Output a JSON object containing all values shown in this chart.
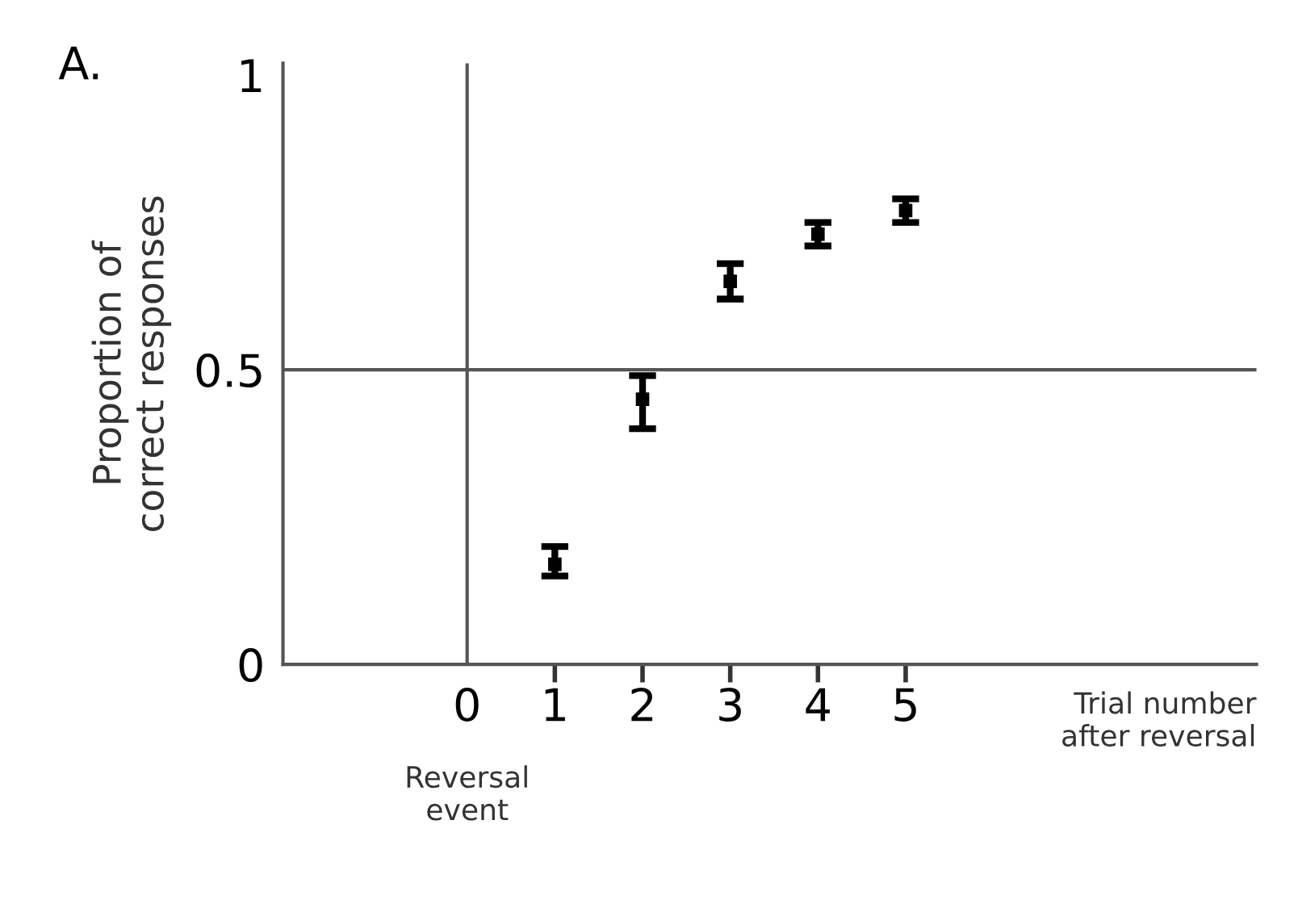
{
  "chart_data": {
    "type": "scatter",
    "ylabel": "Proportion of\ncorrect responses",
    "xlabel": "Trial number\nafter reversal",
    "annotations": [
      "A."
    ],
    "x": [
      1,
      2,
      3,
      4,
      5
    ],
    "series": [
      {
        "color": "#000000",
        "values": [
          0.17,
          0.45,
          0.65,
          0.73,
          0.77
        ],
        "errors": [
          [
            0.15,
            0.2
          ],
          [
            0.4,
            0.49
          ],
          [
            0.62,
            0.68
          ],
          [
            0.71,
            0.75
          ],
          [
            0.75,
            0.79
          ]
        ]
      }
    ],
    "marker": "square",
    "xlim": [
      -2.1,
      9
    ],
    "ylim": [
      0,
      1.02
    ],
    "xticks": [
      0,
      1,
      2,
      3,
      4,
      5
    ],
    "yticks": [
      0,
      0.5,
      1
    ],
    "ref_lines": [
      {
        "axis": "x",
        "value": 0,
        "label": "Reversal\nevent",
        "color": "#555555"
      },
      {
        "axis": "y",
        "value": 0.5,
        "label": null,
        "color": "#555555"
      }
    ],
    "grid": false,
    "legend": false
  }
}
